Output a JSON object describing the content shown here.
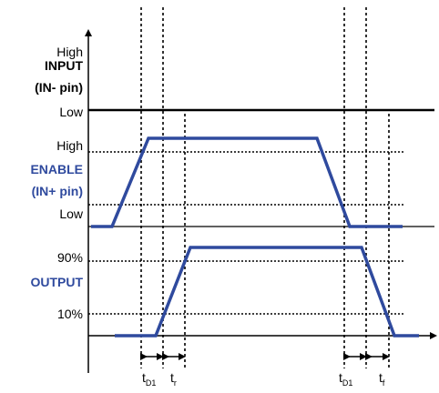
{
  "input": {
    "name_line1": "INPUT",
    "name_line2": "(IN- pin)",
    "high_label": "High",
    "low_label": "Low"
  },
  "enable": {
    "name_line1": "ENABLE",
    "name_line2": "(IN+ pin)",
    "high_label": "High",
    "low_label": "Low",
    "color": "#2f4a9e"
  },
  "output": {
    "name": "OUTPUT",
    "level_90": "90%",
    "level_10": "10%",
    "color": "#2f4a9e"
  },
  "timing": {
    "td1_left": {
      "main": "t",
      "sub": "D1"
    },
    "tr": {
      "main": "t",
      "sub": "r"
    },
    "td1_right": {
      "main": "t",
      "sub": "D1"
    },
    "tf": {
      "main": "t",
      "sub": "f"
    }
  }
}
